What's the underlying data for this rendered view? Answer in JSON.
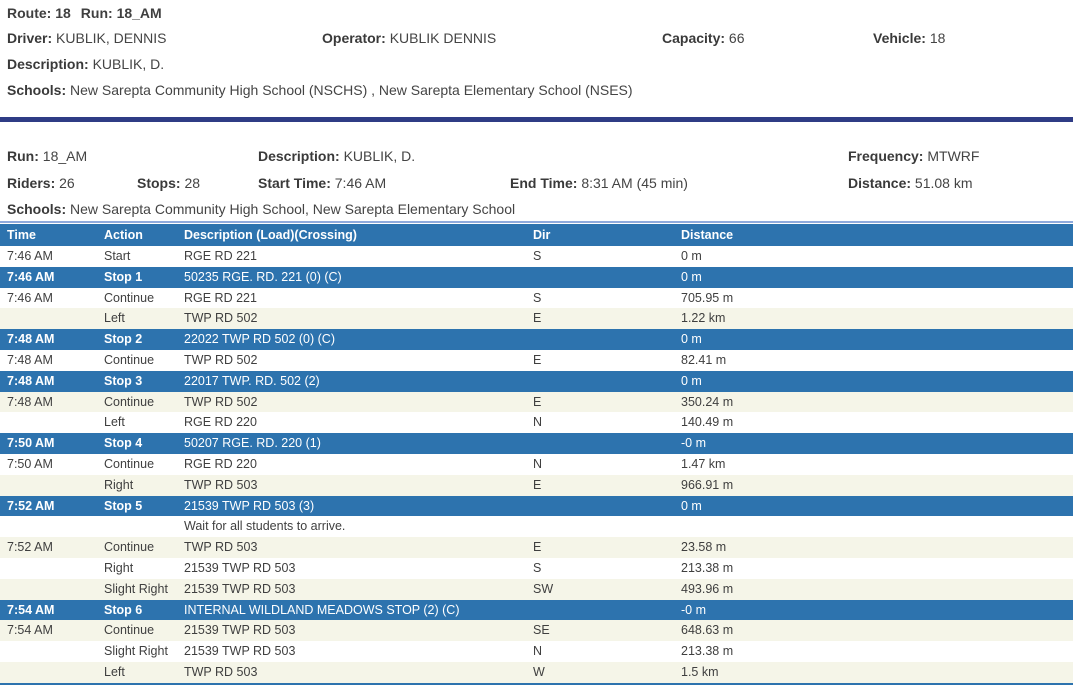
{
  "colors": {
    "table_blue": "#2d73ae",
    "navy_divider": "#2f3c85",
    "light_blue_line": "#8faadc",
    "cream_row": "#f5f5e8",
    "text": "#3f3f3f"
  },
  "route_header": {
    "route_label": "Route:",
    "route_value": "18",
    "run_label": "Run:",
    "run_value": "18_AM",
    "fields": [
      {
        "label": "Driver:",
        "value": "KUBLIK, DENNIS"
      },
      {
        "label": "Operator:",
        "value": "KUBLIK DENNIS"
      },
      {
        "label": "Capacity:",
        "value": "66"
      },
      {
        "label": "Vehicle:",
        "value": "18"
      }
    ],
    "description": {
      "label": "Description:",
      "value": "KUBLIK, D."
    },
    "schools": {
      "label": "Schools:",
      "value": "New Sarepta Community High School (NSCHS) , New Sarepta Elementary School (NSES)"
    }
  },
  "run_info": {
    "run": {
      "label": "Run:",
      "value": "18_AM"
    },
    "description": {
      "label": "Description:",
      "value": "KUBLIK, D."
    },
    "frequency": {
      "label": "Frequency:",
      "value": "MTWRF"
    },
    "riders": {
      "label": "Riders:",
      "value": "26"
    },
    "stops": {
      "label": "Stops:",
      "value": "28"
    },
    "start_time": {
      "label": "Start Time:",
      "value": "7:46 AM"
    },
    "end_time": {
      "label": "End Time:",
      "value": "8:31 AM (45 min)"
    },
    "distance": {
      "label": "Distance:",
      "value": "51.08 km"
    },
    "schools": {
      "label": "Schools:",
      "value": "New Sarepta Community High School, New Sarepta Elementary School"
    }
  },
  "table": {
    "columns": [
      "Time",
      "Action",
      "Description (Load)(Crossing)",
      "Dir",
      "Distance"
    ],
    "rows": [
      {
        "time": "7:46 AM",
        "action": "Start",
        "description": "RGE RD 221",
        "dir": "S",
        "distance": "0 m",
        "shade": "white"
      },
      {
        "time": "7:46 AM",
        "action": "Stop 1",
        "description": "50235 RGE. RD. 221 (0) (C)",
        "dir": "",
        "distance": "0 m",
        "shade": "stop"
      },
      {
        "time": "7:46 AM",
        "action": "Continue",
        "description": "RGE RD 221",
        "dir": "S",
        "distance": "705.95 m",
        "shade": "white"
      },
      {
        "time": "",
        "action": "Left",
        "description": "TWP RD 502",
        "dir": "E",
        "distance": "1.22 km",
        "shade": "cream"
      },
      {
        "time": "7:48 AM",
        "action": "Stop 2",
        "description": "22022 TWP RD 502 (0) (C)",
        "dir": "",
        "distance": "0 m",
        "shade": "stop"
      },
      {
        "time": "7:48 AM",
        "action": "Continue",
        "description": "TWP RD 502",
        "dir": "E",
        "distance": "82.41 m",
        "shade": "white"
      },
      {
        "time": "7:48 AM",
        "action": "Stop 3",
        "description": "22017 TWP. RD. 502 (2)",
        "dir": "",
        "distance": "0 m",
        "shade": "stop"
      },
      {
        "time": "7:48 AM",
        "action": "Continue",
        "description": "TWP RD 502",
        "dir": "E",
        "distance": "350.24 m",
        "shade": "cream"
      },
      {
        "time": "",
        "action": "Left",
        "description": "RGE RD 220",
        "dir": "N",
        "distance": "140.49 m",
        "shade": "white"
      },
      {
        "time": "7:50 AM",
        "action": "Stop 4",
        "description": "50207 RGE. RD. 220 (1)",
        "dir": "",
        "distance": "-0 m",
        "shade": "stop"
      },
      {
        "time": "7:50 AM",
        "action": "Continue",
        "description": "RGE RD 220",
        "dir": "N",
        "distance": "1.47 km",
        "shade": "white"
      },
      {
        "time": "",
        "action": "Right",
        "description": "TWP RD 503",
        "dir": "E",
        "distance": "966.91 m",
        "shade": "cream"
      },
      {
        "time": "7:52 AM",
        "action": "Stop 5",
        "description": "21539 TWP RD 503 (3)",
        "dir": "",
        "distance": "0 m",
        "shade": "stop"
      },
      {
        "time": "",
        "action": "",
        "description": "Wait for all students to arrive.",
        "dir": "",
        "distance": "",
        "shade": "white"
      },
      {
        "time": "7:52 AM",
        "action": "Continue",
        "description": "TWP RD 503",
        "dir": "E",
        "distance": "23.58 m",
        "shade": "cream"
      },
      {
        "time": "",
        "action": "Right",
        "description": "21539 TWP RD 503",
        "dir": "S",
        "distance": "213.38 m",
        "shade": "white"
      },
      {
        "time": "",
        "action": "Slight Right",
        "description": "21539 TWP RD 503",
        "dir": "SW",
        "distance": "493.96 m",
        "shade": "cream"
      },
      {
        "time": "7:54 AM",
        "action": "Stop 6",
        "description": "INTERNAL WILDLAND MEADOWS STOP (2) (C)",
        "dir": "",
        "distance": "-0 m",
        "shade": "stop"
      },
      {
        "time": "7:54 AM",
        "action": "Continue",
        "description": "21539 TWP RD 503",
        "dir": "SE",
        "distance": "648.63 m",
        "shade": "cream"
      },
      {
        "time": "",
        "action": "Slight Right",
        "description": "21539 TWP RD 503",
        "dir": "N",
        "distance": "213.38 m",
        "shade": "white"
      },
      {
        "time": "",
        "action": "Left",
        "description": "TWP RD 503",
        "dir": "W",
        "distance": "1.5 km",
        "shade": "cream"
      }
    ]
  }
}
